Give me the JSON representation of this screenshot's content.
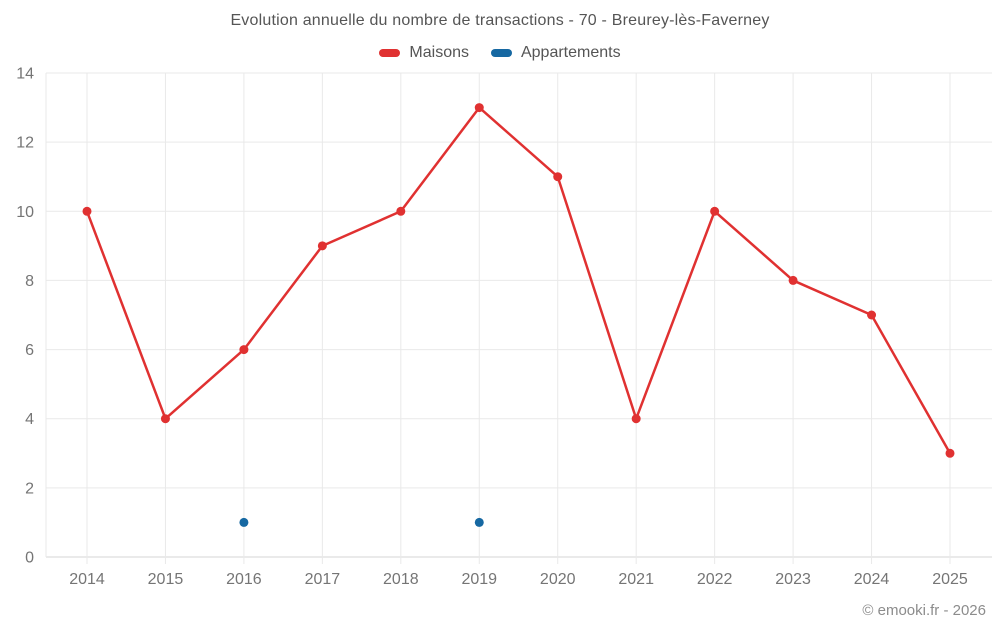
{
  "page": {
    "footer": "© emooki.fr - 2026"
  },
  "colors": {
    "maisons": "#e03131",
    "appartements": "#1668a2",
    "grid": "#e9e9e9",
    "axis": "#d6d6d6",
    "tick_text": "#757575",
    "title_text": "#555555"
  },
  "chart_data": {
    "type": "line",
    "title": "Evolution annuelle du nombre de transactions - 70 - Breurey-lès-Faverney",
    "categories": [
      "2014",
      "2015",
      "2016",
      "2017",
      "2018",
      "2019",
      "2020",
      "2021",
      "2022",
      "2023",
      "2024",
      "2025"
    ],
    "series": [
      {
        "name": "Maisons",
        "color": "#e03131",
        "show_line": true,
        "values": [
          10,
          4,
          6,
          9,
          10,
          13,
          11,
          4,
          10,
          8,
          7,
          3
        ]
      },
      {
        "name": "Appartements",
        "color": "#1668a2",
        "show_line": false,
        "values": [
          null,
          null,
          1,
          null,
          null,
          1,
          null,
          null,
          null,
          null,
          null,
          null
        ]
      }
    ],
    "xlabel": "",
    "ylabel": "",
    "ylim": [
      0,
      14
    ],
    "yticks": [
      0,
      2,
      4,
      6,
      8,
      10,
      12,
      14
    ],
    "grid": true,
    "legend_position": "top"
  }
}
